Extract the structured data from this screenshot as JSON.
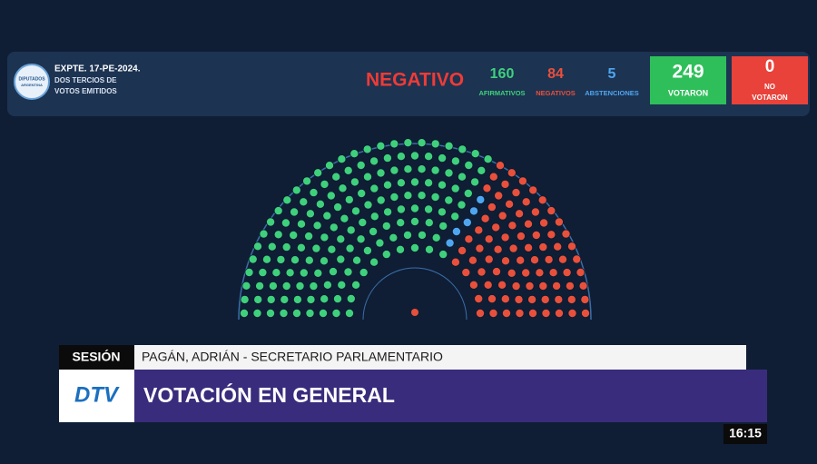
{
  "header": {
    "logo_lines": [
      "DIPUTADOS",
      "ARGENTINA"
    ],
    "expediente": "EXPTE. 17-PE-2024.",
    "majority_lines": [
      "DOS TERCIOS DE",
      "VOTOS EMITIDOS"
    ],
    "result": "NEGATIVO",
    "tallies": [
      {
        "value": 160,
        "label": "AFIRMATIVOS",
        "color": "#3fd07c"
      },
      {
        "value": 84,
        "label": "NEGATIVOS",
        "color": "#e9503c"
      },
      {
        "value": 5,
        "label": "ABSTENCIONES",
        "color": "#4fa6f0"
      }
    ],
    "voted": {
      "value": 249,
      "label": "VOTARON",
      "color": "#2fbf5a"
    },
    "not_voted": {
      "value": 0,
      "label_lines": [
        "NO",
        "VOTARON"
      ],
      "color": "#e8423a"
    }
  },
  "seat_order": [
    0,
    2,
    1
  ],
  "lower_third": {
    "section": "SESIÓN",
    "speaker": "PAGÁN, ADRIÁN - SECRETARIO PARLAMENTARIO",
    "headline": "VOTACIÓN EN GENERAL",
    "channel": "DTV",
    "clock": "16:15"
  }
}
